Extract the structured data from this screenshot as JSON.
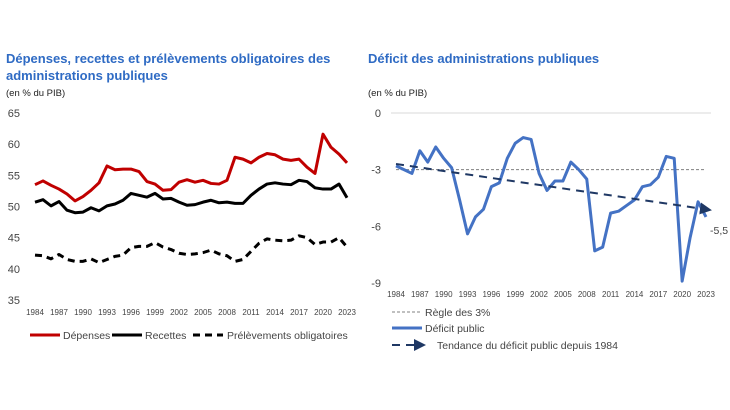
{
  "chart_data": [
    {
      "type": "line",
      "title": "Dépenses, recettes et prélèvements obligatoires des administrations publiques",
      "subtitle": "(en % du PIB)",
      "xlabel": "",
      "ylabel": "",
      "ylim": [
        35,
        65
      ],
      "yticks": [
        "35",
        "40",
        "45",
        "50",
        "55",
        "60",
        "65"
      ],
      "xticks": [
        "1984",
        "1987",
        "1990",
        "1993",
        "1996",
        "1999",
        "2002",
        "2005",
        "2008",
        "2011",
        "2014",
        "2017",
        "2020",
        "2023"
      ],
      "x_start": 1984,
      "x_end": 2023,
      "legend_position": "bottom",
      "series": [
        {
          "name": "Dépenses",
          "color": "#C00000",
          "style": "solid",
          "values": [
            53.5,
            54.1,
            53.4,
            52.8,
            52.0,
            50.9,
            51.6,
            52.6,
            53.8,
            56.5,
            55.9,
            56.0,
            56.0,
            55.6,
            54.0,
            53.6,
            52.6,
            52.7,
            53.9,
            54.3,
            53.9,
            54.2,
            53.7,
            53.6,
            54.2,
            57.9,
            57.6,
            57.0,
            57.9,
            58.5,
            58.3,
            57.6,
            57.4,
            57.6,
            56.3,
            55.3,
            61.6,
            59.5,
            58.4,
            57.0
          ]
        },
        {
          "name": "Recettes",
          "color": "#000000",
          "style": "solid",
          "values": [
            50.7,
            51.1,
            50.1,
            50.8,
            49.4,
            49.0,
            49.1,
            49.8,
            49.3,
            50.1,
            50.4,
            51.0,
            52.1,
            51.8,
            51.5,
            52.1,
            51.2,
            51.3,
            50.7,
            50.2,
            50.3,
            50.7,
            51.0,
            50.6,
            50.7,
            50.5,
            50.5,
            51.8,
            52.8,
            53.6,
            53.8,
            53.6,
            53.5,
            54.2,
            54.0,
            53.0,
            52.8,
            52.8,
            53.6,
            51.4
          ]
        },
        {
          "name": "Prélèvements obligatoires",
          "color": "#000000",
          "style": "dashed",
          "values": [
            42.2,
            42.1,
            41.6,
            42.3,
            41.5,
            41.2,
            41.2,
            41.6,
            41.0,
            41.5,
            42.0,
            42.2,
            43.4,
            43.6,
            43.6,
            44.2,
            43.5,
            43.1,
            42.5,
            42.3,
            42.4,
            42.6,
            43.0,
            42.4,
            42.1,
            41.2,
            41.5,
            42.8,
            44.1,
            44.8,
            44.6,
            44.5,
            44.6,
            45.3,
            45.0,
            43.9,
            44.3,
            44.3,
            45.0,
            43.5
          ]
        }
      ]
    },
    {
      "type": "line",
      "title": "Déficit des administrations publiques",
      "subtitle": "(en % du PIB)",
      "xlabel": "",
      "ylabel": "",
      "ylim": [
        -9,
        0
      ],
      "yticks": [
        "0",
        "-3",
        "-6",
        "-9"
      ],
      "xticks": [
        "1984",
        "1987",
        "1990",
        "1993",
        "1996",
        "1999",
        "2002",
        "2005",
        "2008",
        "2011",
        "2014",
        "2017",
        "2020",
        "2023"
      ],
      "x_start": 1984,
      "x_end": 2023,
      "legend_position": "bottom",
      "annotation": "-5,5",
      "series": [
        {
          "name": "Règle des 3%",
          "color": "#808080",
          "style": "dotted",
          "values": [
            -3,
            -3
          ]
        },
        {
          "name": "Déficit  public",
          "color": "#4472C4",
          "style": "solid",
          "values": [
            -2.8,
            -3.0,
            -3.2,
            -2.0,
            -2.6,
            -1.8,
            -2.4,
            -2.9,
            -4.6,
            -6.4,
            -5.5,
            -5.1,
            -3.9,
            -3.7,
            -2.4,
            -1.6,
            -1.3,
            -1.4,
            -3.2,
            -4.1,
            -3.6,
            -3.6,
            -2.6,
            -3.0,
            -3.5,
            -7.3,
            -7.1,
            -5.3,
            -5.2,
            -4.9,
            -4.6,
            -3.9,
            -3.8,
            -3.4,
            -2.3,
            -2.4,
            -8.9,
            -6.6,
            -4.7,
            -5.5
          ]
        },
        {
          "name": "Tendance du déficit public depuis 1984",
          "color": "#1F3864",
          "style": "dashed-arrow",
          "values": [
            -2.7,
            -5.1
          ]
        }
      ]
    }
  ]
}
